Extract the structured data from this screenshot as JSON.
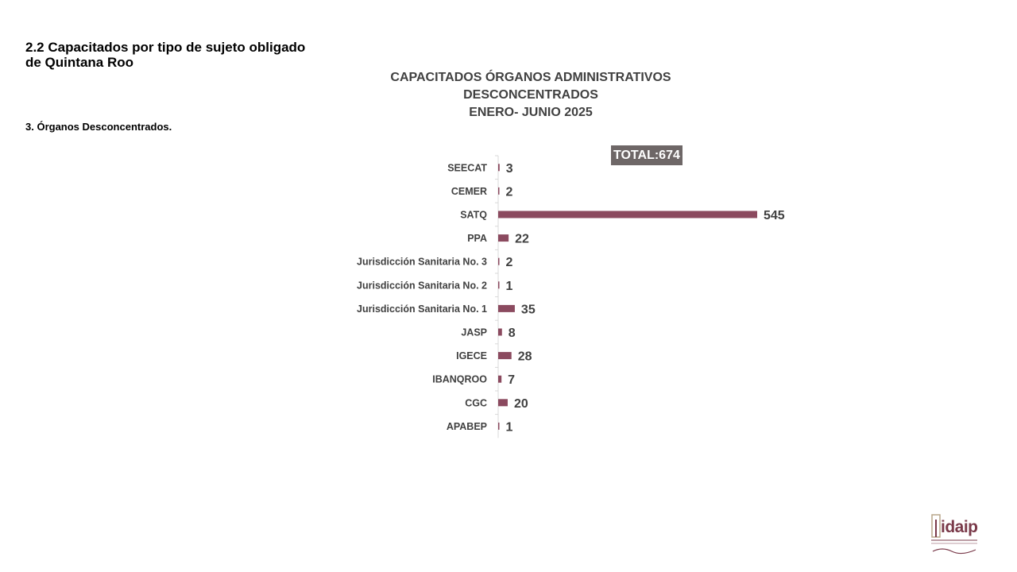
{
  "header": {
    "section_title": "2.2 Capacitados por tipo de sujeto obligado de Quintana Roo",
    "section_subtitle": "3. Órganos Desconcentrados."
  },
  "chart_data": {
    "type": "bar",
    "orientation": "horizontal",
    "title": [
      "CAPACITADOS ÓRGANOS ADMINISTRATIVOS",
      "DESCONCENTRADOS",
      "ENERO- JUNIO 2025"
    ],
    "total_label": "TOTAL:674",
    "categories": [
      "SEECAT",
      "CEMER",
      "SATQ",
      "PPA",
      "Jurisdicción Sanitaria No. 3",
      "Jurisdicción Sanitaria No. 2",
      "Jurisdicción Sanitaria No. 1",
      "JASP",
      "IGECE",
      "IBANQROO",
      "CGC",
      "APABEP"
    ],
    "values": [
      3,
      2,
      545,
      22,
      2,
      1,
      35,
      8,
      28,
      7,
      20,
      1
    ],
    "bar_color": "#8b4a5f",
    "grid": false,
    "legend": "none"
  },
  "logo": {
    "text": "idaip",
    "icon": "idaip-logo-icon"
  }
}
